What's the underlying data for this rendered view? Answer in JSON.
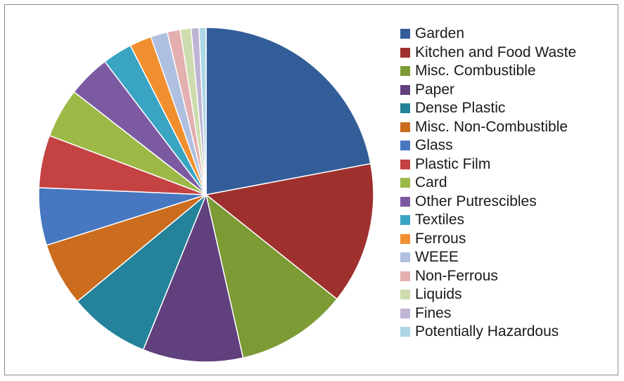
{
  "chart_data": {
    "type": "pie",
    "legend_position": "right",
    "categories": [
      "Garden",
      "Kitchen and Food Waste",
      "Misc. Combustible",
      "Paper",
      "Dense Plastic",
      "Misc. Non-Combustible",
      "Glass",
      "Plastic Film",
      "Card",
      "Other Putrescibles",
      "Textiles",
      "Ferrous",
      "WEEE",
      "Non-Ferrous",
      "Liquids",
      "Fines",
      "Potentially Hazardous"
    ],
    "values": [
      23.0,
      14.3,
      11.2,
      10.1,
      8.2,
      6.4,
      5.8,
      5.3,
      5.0,
      4.3,
      3.0,
      2.2,
      1.7,
      1.3,
      1.1,
      0.8,
      0.7
    ],
    "colors": [
      "#335d99",
      "#9e302d",
      "#7c9b35",
      "#60407d",
      "#24839a",
      "#cb6c1f",
      "#4677c0",
      "#c44342",
      "#9cb947",
      "#7c5aa2",
      "#3aa4c3",
      "#f18f2f",
      "#afbfe0",
      "#e3afaf",
      "#cddcae",
      "#c0b4d4",
      "#add7e5"
    ]
  }
}
